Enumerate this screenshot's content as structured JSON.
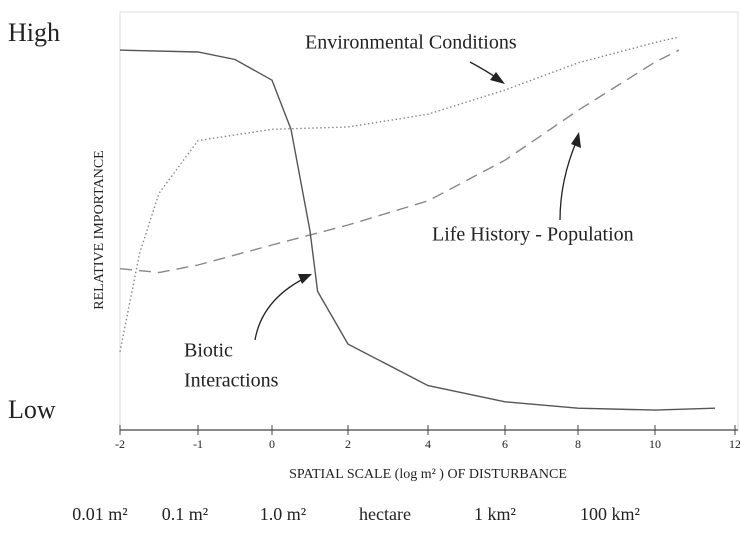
{
  "chart_data": {
    "type": "line",
    "y_high_label": "High",
    "y_low_label": "Low",
    "ylabel": "RELATIVE IMPORTANCE",
    "xlabel": "SPATIAL SCALE (log m² ) OF DISTURBANCE",
    "xticks": [
      -2,
      -1,
      0,
      2,
      4,
      6,
      8,
      10,
      12
    ],
    "xlim": [
      -2,
      12
    ],
    "ylim": [
      0,
      1
    ],
    "scale_labels": [
      "0.01 m²",
      "0.1 m²",
      "1.0 m²",
      "hectare",
      "1 km²",
      "100 km²"
    ],
    "series": [
      {
        "name": "Environmental Conditions",
        "color": "#888",
        "style": "dotted",
        "x": [
          -2,
          -1.75,
          -1.5,
          -1,
          0,
          2,
          4,
          6,
          8,
          10,
          10.6
        ],
        "values": [
          0.16,
          0.42,
          0.58,
          0.72,
          0.75,
          0.756,
          0.79,
          0.854,
          0.926,
          0.98,
          0.995
        ]
      },
      {
        "name": "Life History - Population",
        "color": "#888",
        "style": "dashed",
        "x": [
          -2,
          -1.5,
          -1,
          0,
          2,
          4,
          6,
          8,
          10,
          10.6
        ],
        "values": [
          0.38,
          0.37,
          0.39,
          0.443,
          0.496,
          0.56,
          0.668,
          0.8,
          0.928,
          0.96
        ]
      },
      {
        "name": "Biotic Interactions",
        "label_lines": [
          "Biotic",
          "Interactions"
        ],
        "color": "#555",
        "style": "solid",
        "x": [
          -2,
          -1,
          -0.5,
          0,
          0.5,
          1,
          1.2,
          2,
          4,
          6,
          8,
          10,
          11.5
        ],
        "values": [
          0.96,
          0.955,
          0.935,
          0.88,
          0.75,
          0.48,
          0.32,
          0.18,
          0.07,
          0.027,
          0.01,
          0.005,
          0.01
        ]
      }
    ]
  }
}
